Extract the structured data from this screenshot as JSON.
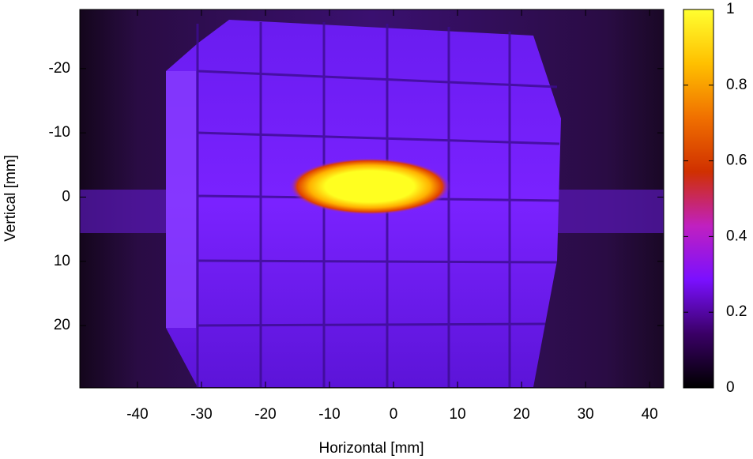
{
  "chart_data": {
    "type": "heatmap",
    "x_label": "Horizontal [mm]",
    "y_label": "Vertical [mm]",
    "xlim": [
      -49,
      42.2
    ],
    "xticks": [
      -40,
      -30,
      -20,
      -10,
      0,
      10,
      20,
      30,
      40
    ],
    "ylim": [
      -29.2,
      29.7
    ],
    "yticks": [
      -20,
      -10,
      0,
      10,
      20
    ],
    "y_inverted": true,
    "colorbar": {
      "lim": [
        0,
        1
      ],
      "ticks": [
        0,
        0.2,
        0.4,
        0.6,
        0.8,
        1
      ],
      "colors": [
        "#000000",
        "#3a0066",
        "#7a10ff",
        "#c020c0",
        "#d03000",
        "#f07000",
        "#ffc000",
        "#ffff30"
      ]
    }
  }
}
